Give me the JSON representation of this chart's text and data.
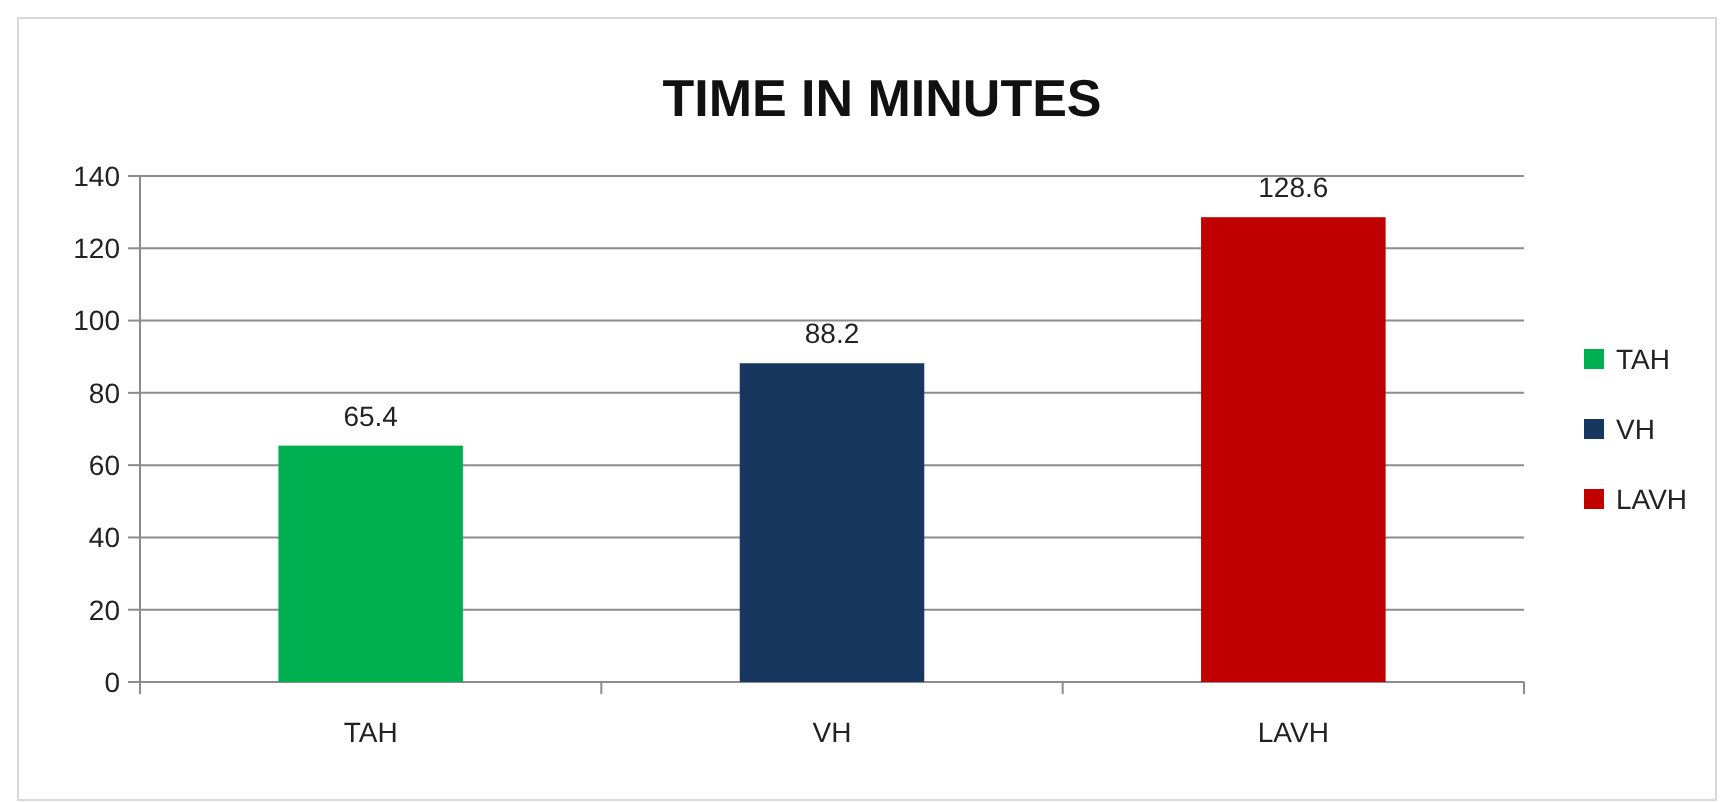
{
  "chart_data": {
    "type": "bar",
    "title": "TIME IN MINUTES",
    "categories": [
      "TAH",
      "VH",
      "LAVH"
    ],
    "series": [
      {
        "name": "TAH",
        "color": "#00b050",
        "values": [
          65.4,
          null,
          null
        ]
      },
      {
        "name": "VH",
        "color": "#17375e",
        "values": [
          null,
          88.2,
          null
        ]
      },
      {
        "name": "LAVH",
        "color": "#c00000",
        "values": [
          null,
          null,
          128.6
        ]
      }
    ],
    "stacked": true,
    "ylim": [
      0,
      140
    ],
    "yticks": [
      0,
      20,
      40,
      60,
      80,
      100,
      120,
      140
    ],
    "grid": "y",
    "legend": "right",
    "data_labels": true
  }
}
